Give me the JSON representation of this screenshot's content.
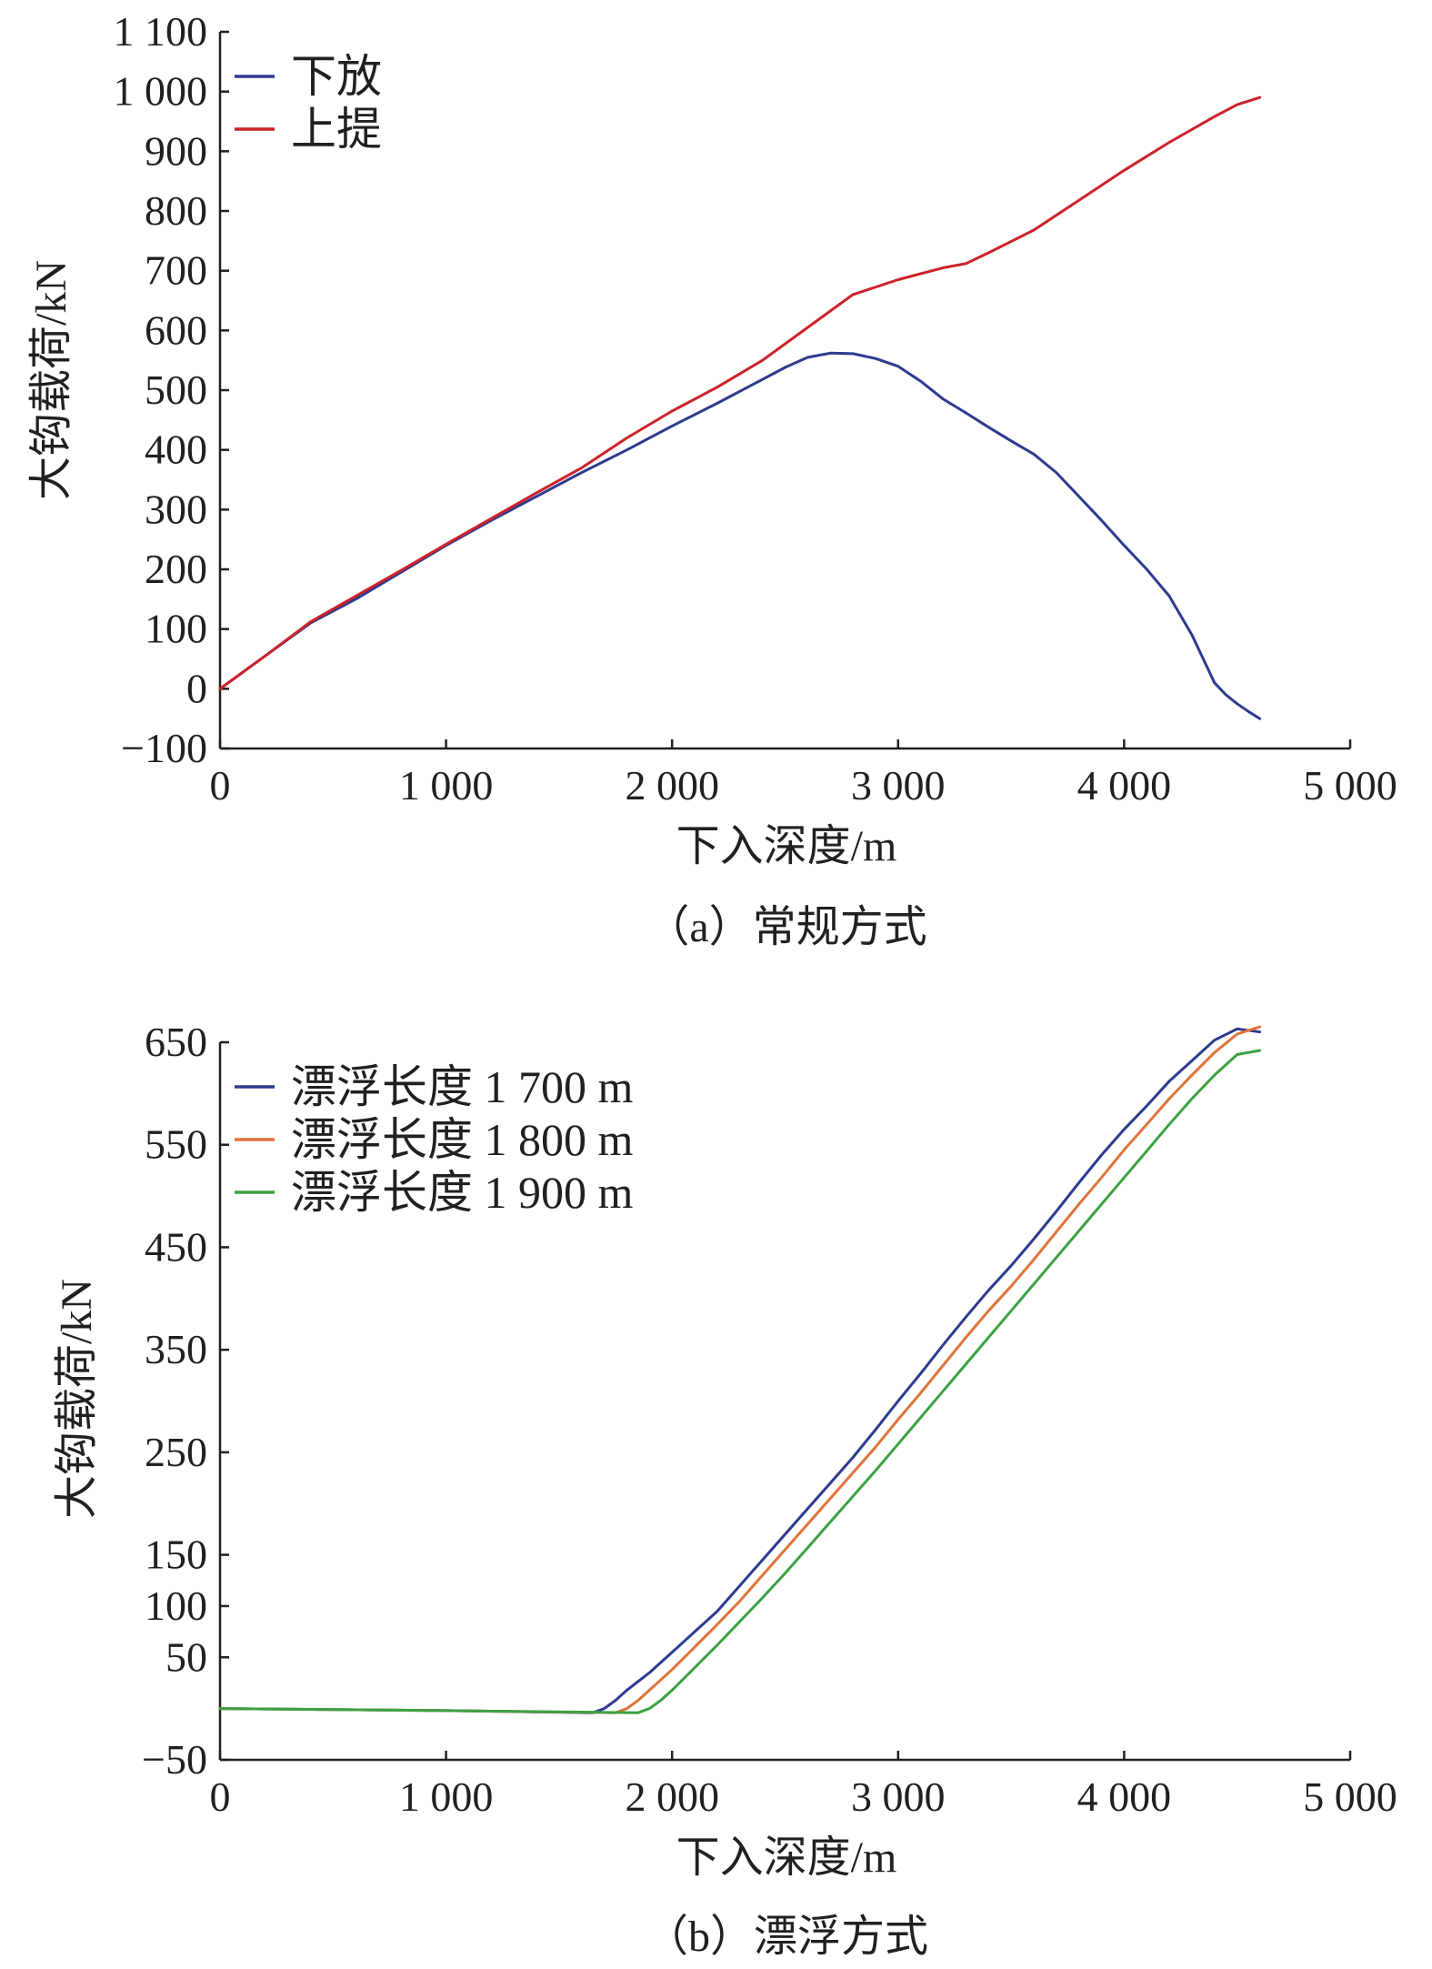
{
  "chart_data": [
    {
      "type": "line",
      "caption": "（a）常规方式",
      "xlabel": "下入深度/m",
      "ylabel": "大钩载荷/kN",
      "xlim": [
        0,
        5000
      ],
      "ylim": [
        -100,
        1100
      ],
      "xticks": [
        0,
        1000,
        2000,
        3000,
        4000,
        5000
      ],
      "xtick_labels": [
        "0",
        "1 000",
        "2 000",
        "3 000",
        "4 000",
        "5 000"
      ],
      "yticks": [
        -100,
        0,
        100,
        200,
        300,
        400,
        500,
        600,
        700,
        800,
        900,
        1000,
        1100
      ],
      "ytick_labels": [
        "−100",
        "0",
        "100",
        "200",
        "300",
        "400",
        "500",
        "600",
        "700",
        "800",
        "900",
        "1 000",
        "1 100"
      ],
      "legend_position": "top-left",
      "series": [
        {
          "name": "下放",
          "color": "#2e3a8f",
          "x": [
            0,
            200,
            400,
            600,
            800,
            1000,
            1200,
            1400,
            1600,
            1800,
            2000,
            2200,
            2400,
            2500,
            2600,
            2700,
            2800,
            2900,
            3000,
            3100,
            3200,
            3300,
            3400,
            3500,
            3600,
            3700,
            3800,
            3900,
            4000,
            4100,
            4200,
            4300,
            4350,
            4400,
            4450,
            4500,
            4550,
            4600
          ],
          "y": [
            0,
            55,
            110,
            150,
            195,
            240,
            282,
            322,
            362,
            400,
            440,
            478,
            518,
            538,
            555,
            562,
            561,
            553,
            540,
            515,
            485,
            462,
            438,
            415,
            393,
            362,
            322,
            282,
            240,
            200,
            155,
            90,
            50,
            10,
            -10,
            -25,
            -38,
            -50
          ]
        },
        {
          "name": "上提",
          "color": "#cc2229",
          "x": [
            0,
            200,
            400,
            600,
            800,
            1000,
            1200,
            1400,
            1600,
            1800,
            2000,
            2200,
            2400,
            2600,
            2800,
            3000,
            3200,
            3300,
            3400,
            3600,
            3800,
            4000,
            4200,
            4400,
            4500,
            4600
          ],
          "y": [
            0,
            55,
            112,
            155,
            198,
            242,
            285,
            328,
            370,
            420,
            465,
            505,
            550,
            605,
            660,
            685,
            705,
            712,
            730,
            768,
            818,
            868,
            915,
            958,
            978,
            990
          ]
        }
      ]
    },
    {
      "type": "line",
      "caption": "（b）漂浮方式",
      "xlabel": "下入深度/m",
      "ylabel": "大钩载荷/kN",
      "xlim": [
        0,
        5000
      ],
      "ylim": [
        -50,
        650
      ],
      "xticks": [
        0,
        1000,
        2000,
        3000,
        4000,
        5000
      ],
      "xtick_labels": [
        "0",
        "1 000",
        "2 000",
        "3 000",
        "4 000",
        "5 000"
      ],
      "yticks": [
        -50,
        50,
        100,
        150,
        250,
        350,
        450,
        550,
        650
      ],
      "ytick_labels": [
        "−50",
        "50",
        "100",
        "150",
        "250",
        "350",
        "450",
        "550",
        "650"
      ],
      "legend_position": "top-left",
      "series": [
        {
          "name": "漂浮长度 1 700 m",
          "color": "#2e3a8f",
          "x": [
            0,
            1000,
            1650,
            1700,
            1750,
            1800,
            1900,
            2000,
            2100,
            2200,
            2300,
            2400,
            2500,
            2600,
            2700,
            2800,
            2900,
            3000,
            3100,
            3200,
            3300,
            3400,
            3500,
            3600,
            3700,
            3800,
            3900,
            4000,
            4100,
            4200,
            4300,
            4400,
            4500,
            4600
          ],
          "y": [
            0,
            -2,
            -4,
            0,
            8,
            18,
            35,
            55,
            75,
            95,
            120,
            145,
            170,
            195,
            220,
            245,
            272,
            300,
            327,
            355,
            382,
            408,
            432,
            458,
            485,
            513,
            540,
            565,
            588,
            612,
            632,
            652,
            663,
            660
          ]
        },
        {
          "name": "漂浮长度 1 800 m",
          "color": "#e0743a",
          "x": [
            0,
            1000,
            1750,
            1800,
            1850,
            1900,
            2000,
            2100,
            2200,
            2300,
            2400,
            2500,
            2600,
            2700,
            2800,
            2900,
            3000,
            3100,
            3200,
            3300,
            3400,
            3500,
            3600,
            3700,
            3800,
            3900,
            4000,
            4100,
            4200,
            4300,
            4400,
            4500,
            4600
          ],
          "y": [
            0,
            -2,
            -4,
            0,
            8,
            18,
            38,
            60,
            82,
            105,
            130,
            155,
            180,
            205,
            230,
            255,
            282,
            308,
            335,
            362,
            388,
            412,
            438,
            465,
            492,
            518,
            545,
            570,
            595,
            618,
            640,
            658,
            665
          ]
        },
        {
          "name": "漂浮长度 1 900 m",
          "color": "#3ca142",
          "x": [
            0,
            1000,
            1850,
            1900,
            1950,
            2000,
            2100,
            2200,
            2300,
            2400,
            2500,
            2600,
            2700,
            2800,
            2900,
            3000,
            3100,
            3200,
            3300,
            3400,
            3500,
            3600,
            3700,
            3800,
            3900,
            4000,
            4100,
            4200,
            4300,
            4400,
            4500,
            4600
          ],
          "y": [
            0,
            -2,
            -4,
            0,
            8,
            18,
            40,
            62,
            85,
            108,
            132,
            157,
            182,
            207,
            232,
            258,
            284,
            310,
            336,
            362,
            388,
            414,
            440,
            466,
            492,
            518,
            544,
            570,
            595,
            618,
            638,
            642
          ]
        }
      ]
    }
  ]
}
